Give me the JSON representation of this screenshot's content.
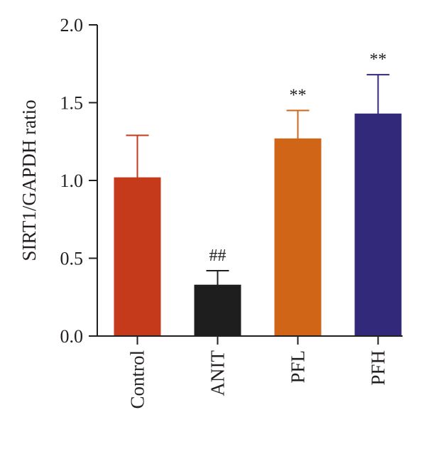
{
  "chart_data": {
    "type": "bar",
    "title": "",
    "xlabel": "",
    "ylabel": "SIRT1/GAPDH ratio",
    "ylim": [
      0,
      2.0
    ],
    "yticks": [
      0.0,
      0.5,
      1.0,
      1.5,
      2.0
    ],
    "ytick_labels": [
      "0.0",
      "0.5",
      "1.0",
      "1.5",
      "2.0"
    ],
    "categories": [
      "Control",
      "ANIT",
      "PFL",
      "PFH"
    ],
    "values": [
      1.02,
      0.33,
      1.27,
      1.43
    ],
    "errors": [
      0.27,
      0.09,
      0.18,
      0.25
    ],
    "significance": [
      "",
      "##",
      "**",
      "**"
    ],
    "colors": [
      "#c63a1c",
      "#1e1e1e",
      "#d06518",
      "#32297a"
    ],
    "grid": false,
    "legend": "none"
  }
}
